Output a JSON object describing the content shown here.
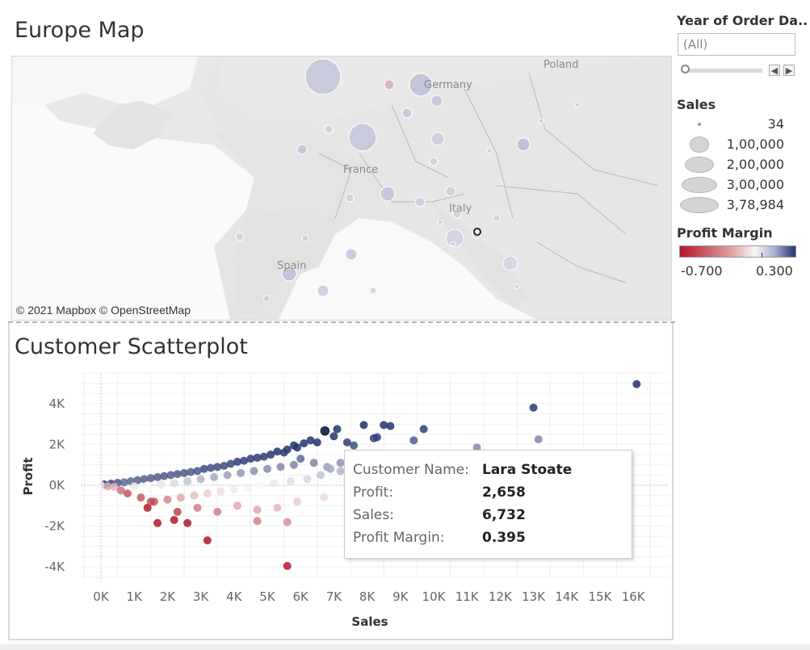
{
  "map": {
    "title": "Europe Map",
    "copyright": "© 2021 Mapbox © OpenStreetMap",
    "labels": {
      "poland": "Poland",
      "germany": "Germany",
      "france": "France",
      "italy": "Italy",
      "spain": "Spain"
    }
  },
  "scatter": {
    "title": "Customer Scatterplot",
    "tooltip": {
      "customer_key": "Customer Name:",
      "customer_val": "Lara Stoate",
      "profit_key": "Profit:",
      "profit_val": "2,658",
      "sales_key": "Sales:",
      "sales_val": "6,732",
      "margin_key": "Profit Margin:",
      "margin_val": "0.395"
    }
  },
  "filters": {
    "year_label": "Year of Order Da..",
    "year_value": "(All)",
    "sales_label": "Sales",
    "sales_sizes": [
      "34",
      "1,00,000",
      "2,00,000",
      "3,00,000",
      "3,78,984"
    ],
    "profit_margin_label": "Profit Margin",
    "profit_margin_min": "-0.700",
    "profit_margin_max": "0.300",
    "colors": {
      "negative": "#b2182b",
      "neutral": "#f7f7f7",
      "positive": "#23326f"
    }
  },
  "chart_data": {
    "type": "scatter",
    "title": "Customer Scatterplot",
    "xlabel": "Sales",
    "ylabel": "Profit",
    "xlim": [
      -500,
      17000
    ],
    "ylim": [
      -4500,
      5500
    ],
    "x_ticks": [
      "0K",
      "1K",
      "2K",
      "3K",
      "4K",
      "5K",
      "6K",
      "7K",
      "8K",
      "9K",
      "10K",
      "11K",
      "12K",
      "13K",
      "14K",
      "15K",
      "16K"
    ],
    "y_ticks": [
      "4K",
      "2K",
      "0K",
      "-2K",
      "-4K"
    ],
    "y_tick_values": [
      4000,
      2000,
      0,
      -2000,
      -4000
    ],
    "highlighted_point": {
      "x": 6732,
      "y": 2658,
      "margin": 0.395
    },
    "points": [
      [
        16100,
        4950
      ],
      [
        13000,
        3800
      ],
      [
        13150,
        2250
      ],
      [
        11300,
        1850
      ],
      [
        9700,
        2750
      ],
      [
        8500,
        2950
      ],
      [
        8700,
        2900
      ],
      [
        7900,
        2950
      ],
      [
        7100,
        2750
      ],
      [
        8200,
        2300
      ],
      [
        8300,
        2350
      ],
      [
        9400,
        2200
      ],
      [
        7000,
        2400
      ],
      [
        7400,
        2100
      ],
      [
        7600,
        1950
      ],
      [
        6500,
        2100
      ],
      [
        6300,
        2200
      ],
      [
        6100,
        2050
      ],
      [
        5900,
        1850
      ],
      [
        5800,
        1950
      ],
      [
        5600,
        1750
      ],
      [
        5500,
        1600
      ],
      [
        5300,
        1650
      ],
      [
        5100,
        1500
      ],
      [
        4900,
        1400
      ],
      [
        4700,
        1350
      ],
      [
        4500,
        1300
      ],
      [
        4300,
        1200
      ],
      [
        4100,
        1150
      ],
      [
        3900,
        1050
      ],
      [
        3700,
        950
      ],
      [
        3500,
        900
      ],
      [
        3300,
        850
      ],
      [
        3100,
        800
      ],
      [
        2900,
        700
      ],
      [
        2700,
        650
      ],
      [
        2500,
        600
      ],
      [
        2300,
        550
      ],
      [
        2100,
        500
      ],
      [
        1900,
        450
      ],
      [
        1700,
        400
      ],
      [
        1500,
        350
      ],
      [
        1300,
        300
      ],
      [
        1100,
        250
      ],
      [
        900,
        200
      ],
      [
        700,
        150
      ],
      [
        500,
        120
      ],
      [
        300,
        80
      ],
      [
        100,
        40
      ],
      [
        0,
        0
      ],
      [
        200,
        -50
      ],
      [
        400,
        -80
      ],
      [
        6000,
        1300
      ],
      [
        6400,
        1100
      ],
      [
        6800,
        900
      ],
      [
        7200,
        700
      ],
      [
        5800,
        1000
      ],
      [
        5400,
        900
      ],
      [
        5000,
        800
      ],
      [
        4600,
        700
      ],
      [
        4200,
        600
      ],
      [
        3800,
        500
      ],
      [
        3400,
        400
      ],
      [
        3000,
        300
      ],
      [
        2600,
        200
      ],
      [
        2200,
        100
      ],
      [
        1800,
        50
      ],
      [
        1400,
        0
      ],
      [
        1000,
        -50
      ],
      [
        6600,
        500
      ],
      [
        6200,
        300
      ],
      [
        5700,
        200
      ],
      [
        5200,
        100
      ],
      [
        4800,
        0
      ],
      [
        4400,
        -100
      ],
      [
        4000,
        -200
      ],
      [
        3600,
        -300
      ],
      [
        3200,
        -400
      ],
      [
        2800,
        -500
      ],
      [
        2400,
        -600
      ],
      [
        2000,
        -700
      ],
      [
        1600,
        -800
      ],
      [
        1200,
        -600
      ],
      [
        800,
        -400
      ],
      [
        600,
        -250
      ],
      [
        6700,
        -600
      ],
      [
        5900,
        -800
      ],
      [
        5300,
        -1100
      ],
      [
        4700,
        -1200
      ],
      [
        4100,
        -1000
      ],
      [
        3500,
        -1300
      ],
      [
        2900,
        -1100
      ],
      [
        2300,
        -1300
      ],
      [
        2200,
        -1700
      ],
      [
        1400,
        -1100
      ],
      [
        1500,
        -800
      ],
      [
        4700,
        -1750
      ],
      [
        3200,
        -2700
      ],
      [
        5600,
        -1800
      ],
      [
        1700,
        -1850
      ],
      [
        2600,
        -1850
      ],
      [
        5600,
        -3950
      ],
      [
        7200,
        1100
      ],
      [
        6900,
        800
      ],
      [
        7600,
        600
      ],
      [
        7800,
        1000
      ],
      [
        8000,
        400
      ]
    ]
  }
}
